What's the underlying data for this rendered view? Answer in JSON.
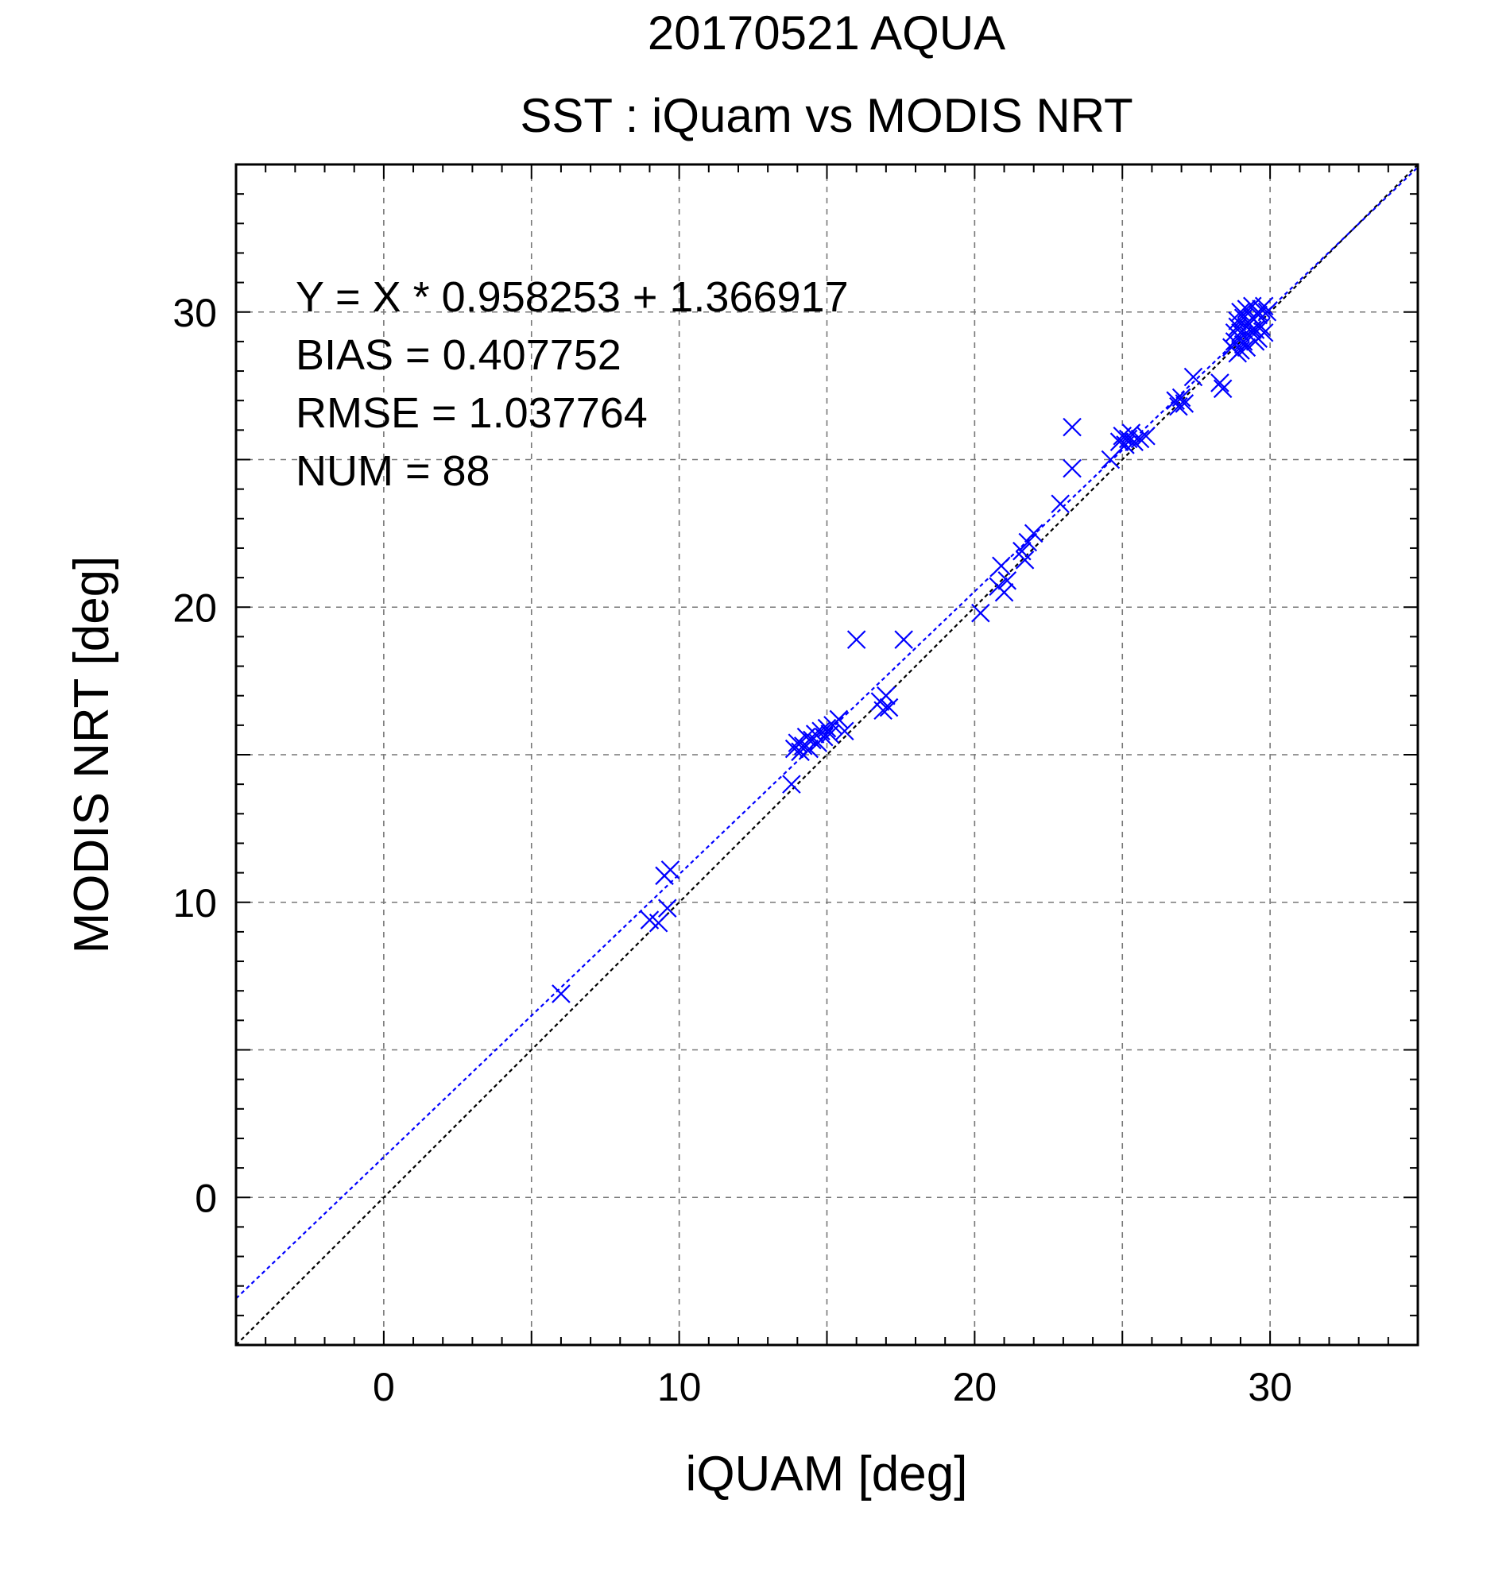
{
  "chart_data": {
    "type": "scatter",
    "title": "20170521 AQUA",
    "subtitle": "SST : iQuam vs MODIS NRT",
    "xlabel": "iQUAM [deg]",
    "ylabel": "MODIS NRT [deg]",
    "xlim": [
      -5,
      35
    ],
    "ylim": [
      -5,
      35
    ],
    "xticks": [
      0,
      10,
      20,
      30
    ],
    "yticks": [
      0,
      10,
      20,
      30
    ],
    "major_grid_step": 5,
    "minor_tick_step": 1,
    "grid": true,
    "grid_style": "dashed",
    "marker": "x",
    "marker_color": "#0000ff",
    "stats": [
      "Y = X * 0.958253 + 1.366917",
      "BIAS = 0.407752",
      "RMSE = 1.037764",
      "NUM = 88"
    ],
    "regression": {
      "slope": 0.958253,
      "intercept": 1.366917,
      "color": "#0000ff"
    },
    "identity_line": {
      "slope": 1,
      "intercept": 0,
      "color": "#000000"
    },
    "points": [
      [
        6.0,
        6.9
      ],
      [
        9.0,
        9.4
      ],
      [
        9.3,
        9.3
      ],
      [
        9.6,
        9.8
      ],
      [
        9.7,
        11.1
      ],
      [
        9.5,
        10.9
      ],
      [
        13.8,
        14.0
      ],
      [
        13.9,
        15.2
      ],
      [
        14.0,
        15.4
      ],
      [
        14.1,
        15.1
      ],
      [
        14.2,
        15.3
      ],
      [
        14.3,
        15.6
      ],
      [
        14.4,
        15.2
      ],
      [
        14.5,
        15.5
      ],
      [
        14.6,
        15.7
      ],
      [
        14.7,
        15.4
      ],
      [
        14.8,
        15.8
      ],
      [
        14.9,
        15.6
      ],
      [
        15.0,
        15.9
      ],
      [
        15.1,
        15.7
      ],
      [
        15.2,
        16.0
      ],
      [
        15.4,
        16.2
      ],
      [
        15.6,
        15.8
      ],
      [
        16.0,
        18.9
      ],
      [
        17.6,
        18.9
      ],
      [
        16.8,
        16.8
      ],
      [
        16.9,
        16.5
      ],
      [
        17.0,
        17.0
      ],
      [
        17.1,
        16.6
      ],
      [
        20.2,
        19.8
      ],
      [
        20.8,
        20.7
      ],
      [
        20.9,
        21.4
      ],
      [
        21.0,
        20.5
      ],
      [
        21.1,
        20.9
      ],
      [
        21.6,
        21.9
      ],
      [
        21.7,
        21.6
      ],
      [
        21.8,
        22.2
      ],
      [
        22.0,
        22.5
      ],
      [
        22.9,
        23.5
      ],
      [
        23.3,
        24.7
      ],
      [
        23.3,
        26.1
      ],
      [
        24.6,
        25.0
      ],
      [
        24.9,
        25.6
      ],
      [
        25.0,
        25.8
      ],
      [
        25.1,
        25.5
      ],
      [
        25.2,
        25.7
      ],
      [
        25.3,
        25.9
      ],
      [
        25.4,
        25.6
      ],
      [
        25.6,
        25.7
      ],
      [
        25.8,
        25.8
      ],
      [
        26.8,
        27.0
      ],
      [
        26.9,
        26.8
      ],
      [
        27.0,
        27.1
      ],
      [
        27.1,
        26.9
      ],
      [
        27.4,
        27.8
      ],
      [
        28.3,
        27.6
      ],
      [
        28.4,
        27.4
      ],
      [
        28.7,
        28.8
      ],
      [
        28.8,
        29.0
      ],
      [
        28.9,
        28.6
      ],
      [
        29.0,
        29.3
      ],
      [
        28.9,
        29.7
      ],
      [
        29.0,
        28.7
      ],
      [
        29.1,
        29.0
      ],
      [
        29.2,
        29.5
      ],
      [
        29.1,
        28.9
      ],
      [
        29.3,
        29.2
      ],
      [
        29.4,
        29.8
      ],
      [
        29.2,
        30.1
      ],
      [
        29.5,
        29.4
      ],
      [
        29.6,
        29.9
      ],
      [
        29.4,
        30.2
      ],
      [
        29.7,
        30.1
      ],
      [
        29.8,
        29.3
      ],
      [
        29.5,
        29.0
      ],
      [
        29.3,
        29.6
      ],
      [
        29.6,
        30.0
      ],
      [
        29.0,
        30.0
      ],
      [
        29.8,
        30.2
      ],
      [
        29.7,
        29.5
      ],
      [
        28.8,
        29.3
      ],
      [
        29.0,
        29.1
      ],
      [
        29.4,
        29.4
      ],
      [
        29.2,
        28.8
      ],
      [
        29.6,
        29.1
      ],
      [
        29.9,
        30.0
      ],
      [
        29.1,
        29.8
      ],
      [
        28.9,
        29.5
      ]
    ]
  }
}
